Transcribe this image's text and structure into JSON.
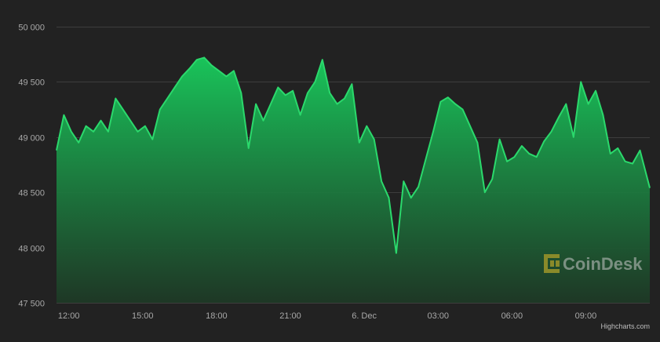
{
  "chart_data": {
    "type": "area",
    "title": "",
    "xlabel": "",
    "ylabel": "",
    "ylim": [
      47500,
      50000
    ],
    "y_ticks": [
      50000,
      49500,
      49000,
      48500,
      48000,
      47500
    ],
    "y_tick_labels": [
      "50 000",
      "49 500",
      "49 000",
      "48 500",
      "48 000",
      "47 500"
    ],
    "x_tick_labels": [
      "12:00",
      "15:00",
      "18:00",
      "21:00",
      "6. Dec",
      "03:00",
      "06:00",
      "09:00"
    ],
    "x_ticks_hours": [
      12,
      15,
      18,
      21,
      24,
      27,
      30,
      33
    ],
    "xlim_hours": [
      11.5,
      35.6
    ],
    "grid": true,
    "series": [
      {
        "x_hours": [
          11.5,
          11.8,
          12.1,
          12.4,
          12.7,
          13.0,
          13.3,
          13.6,
          13.9,
          14.2,
          14.5,
          14.8,
          15.1,
          15.4,
          15.7,
          16.0,
          16.3,
          16.6,
          16.9,
          17.2,
          17.5,
          17.8,
          18.1,
          18.4,
          18.7,
          19.0,
          19.3,
          19.6,
          19.9,
          20.2,
          20.5,
          20.8,
          21.1,
          21.4,
          21.7,
          22.0,
          22.3,
          22.6,
          22.9,
          23.2,
          23.5,
          23.8,
          24.1,
          24.4,
          24.7,
          25.0,
          25.3,
          25.6,
          25.9,
          26.2,
          26.5,
          26.8,
          27.1,
          27.4,
          27.7,
          28.0,
          28.3,
          28.6,
          28.9,
          29.2,
          29.5,
          29.8,
          30.1,
          30.4,
          30.7,
          31.0,
          31.3,
          31.6,
          31.9,
          32.2,
          32.5,
          32.8,
          33.1,
          33.4,
          33.7,
          34.0,
          34.3,
          34.6,
          34.9,
          35.2,
          35.6
        ],
        "values": [
          48880,
          49200,
          49050,
          48950,
          49100,
          49050,
          49150,
          49050,
          49350,
          49250,
          49150,
          49050,
          49100,
          48980,
          49250,
          49350,
          49450,
          49550,
          49620,
          49700,
          49720,
          49650,
          49600,
          49550,
          49600,
          49400,
          48900,
          49300,
          49150,
          49300,
          49450,
          49380,
          49420,
          49200,
          49400,
          49500,
          49700,
          49400,
          49300,
          49350,
          49480,
          48950,
          49100,
          48980,
          48600,
          48450,
          47950,
          48600,
          48450,
          48550,
          48800,
          49050,
          49320,
          49360,
          49300,
          49250,
          49100,
          48950,
          48500,
          48620,
          48980,
          48780,
          48820,
          48920,
          48850,
          48820,
          48960,
          49050,
          49180,
          49300,
          49000,
          49500,
          49300,
          49420,
          49200,
          48850,
          48900,
          48780,
          48760,
          48880,
          48540
        ]
      }
    ]
  },
  "watermark": {
    "brand": "CoinDesk",
    "icon": "coindesk-logo-icon"
  },
  "credit": "Highcharts.com",
  "colors": {
    "background": "#222222",
    "line": "#2bd96c",
    "area_top": "#19c45a",
    "area_bottom": "#1e3a26",
    "grid": "#3d3d3d",
    "tick_text": "#a8a8a8"
  }
}
